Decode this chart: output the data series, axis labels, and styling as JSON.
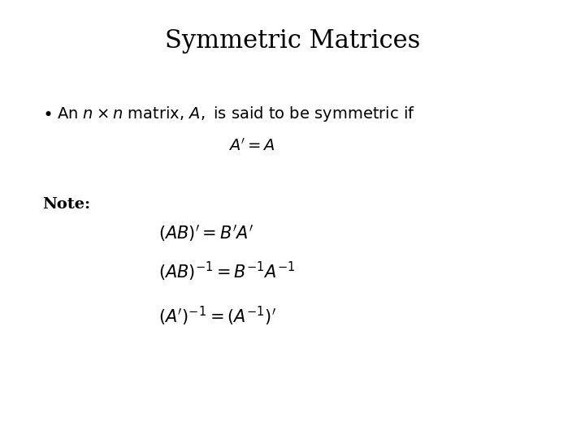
{
  "title": "Symmetric Matrices",
  "title_fontsize": 22,
  "title_font": "DejaVu Serif",
  "bg_color": "#ffffff",
  "text_color": "#000000",
  "bullet_text_plain": "An $n \\times n$ matrix, $A,$ is said to be symmetric if",
  "bullet_fontsize": 14,
  "eq1": "$A^{\\prime} = A$",
  "eq1_fontsize": 14,
  "note_label": "Note:",
  "note_fontsize": 14,
  "eq2": "$(AB)^{\\prime} = B^{\\prime}A^{\\prime}$",
  "eq2_fontsize": 15,
  "eq3": "$(AB)^{-1} = B^{-1}A^{-1}$",
  "eq3_fontsize": 15,
  "eq4": "$(A^{\\prime})^{-1} = \\left(A^{-1}\\right)^{\\prime}$",
  "eq4_fontsize": 15
}
